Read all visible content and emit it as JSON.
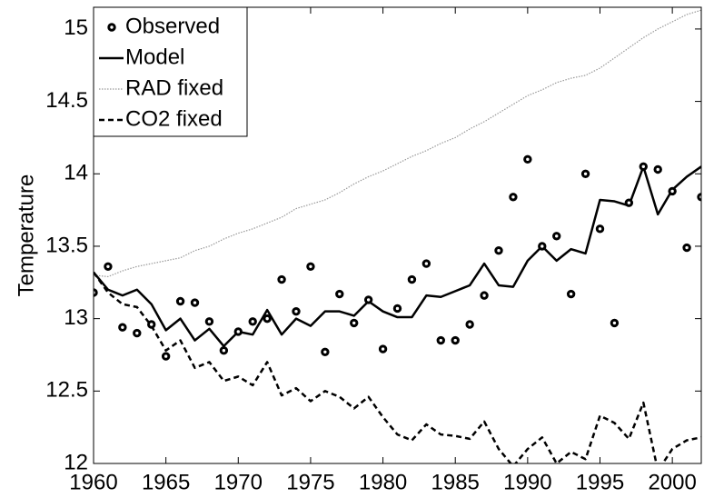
{
  "chart_data": {
    "type": "line",
    "ylabel": "Temperature",
    "x": [
      1960,
      1961,
      1962,
      1963,
      1964,
      1965,
      1966,
      1967,
      1968,
      1969,
      1970,
      1971,
      1972,
      1973,
      1974,
      1975,
      1976,
      1977,
      1978,
      1979,
      1980,
      1981,
      1982,
      1983,
      1984,
      1985,
      1986,
      1987,
      1988,
      1989,
      1990,
      1991,
      1992,
      1993,
      1994,
      1995,
      1996,
      1997,
      1998,
      1999,
      2000,
      2001,
      2002
    ],
    "series": [
      {
        "name": "Observed",
        "color": "#000000",
        "style": "dots",
        "values": [
          13.18,
          13.36,
          12.94,
          12.9,
          12.96,
          12.74,
          13.12,
          13.11,
          12.98,
          12.78,
          12.91,
          12.98,
          13.0,
          13.27,
          13.05,
          13.36,
          12.77,
          13.17,
          12.97,
          13.13,
          12.79,
          13.07,
          13.27,
          13.38,
          12.85,
          12.85,
          12.96,
          13.16,
          13.47,
          13.84,
          14.1,
          13.5,
          13.57,
          13.17,
          14.0,
          13.62,
          12.97,
          13.8,
          14.05,
          14.03,
          13.88,
          13.49,
          13.84
        ]
      },
      {
        "name": "Model",
        "color": "#000000",
        "style": "solid",
        "values": [
          13.32,
          13.2,
          13.16,
          13.2,
          13.1,
          12.92,
          13.0,
          12.85,
          12.93,
          12.81,
          12.91,
          12.89,
          13.06,
          12.89,
          13.0,
          12.95,
          13.05,
          13.05,
          13.02,
          13.12,
          13.05,
          13.01,
          13.01,
          13.16,
          13.15,
          13.19,
          13.23,
          13.38,
          13.23,
          13.22,
          13.4,
          13.5,
          13.4,
          13.48,
          13.45,
          13.82,
          13.81,
          13.78,
          14.05,
          13.72,
          13.89,
          13.98,
          14.05
        ]
      },
      {
        "name": "RAD fixed",
        "color": "#999999",
        "style": "dotted",
        "values": [
          13.3,
          13.29,
          13.33,
          13.36,
          13.38,
          13.4,
          13.42,
          13.47,
          13.5,
          13.55,
          13.59,
          13.62,
          13.66,
          13.7,
          13.76,
          13.79,
          13.82,
          13.87,
          13.93,
          13.98,
          14.02,
          14.07,
          14.12,
          14.16,
          14.21,
          14.25,
          14.31,
          14.36,
          14.42,
          14.48,
          14.54,
          14.58,
          14.63,
          14.66,
          14.68,
          14.73,
          14.8,
          14.87,
          14.94,
          15.0,
          15.05,
          15.1,
          15.13
        ]
      },
      {
        "name": "CO2 fixed",
        "color": "#000000",
        "style": "dashed",
        "values": [
          13.32,
          13.18,
          13.1,
          13.08,
          12.95,
          12.78,
          12.85,
          12.66,
          12.7,
          12.57,
          12.6,
          12.54,
          12.7,
          12.47,
          12.52,
          12.43,
          12.5,
          12.46,
          12.38,
          12.46,
          12.32,
          12.2,
          12.16,
          12.27,
          12.2,
          12.19,
          12.17,
          12.29,
          12.1,
          11.98,
          12.1,
          12.18,
          12.0,
          12.08,
          12.03,
          12.33,
          12.28,
          12.17,
          12.42,
          11.95,
          12.1,
          12.16,
          12.18
        ]
      }
    ],
    "xlim": [
      1960,
      2002
    ],
    "ylim": [
      12,
      15.15
    ],
    "xticks": [
      1960,
      1965,
      1970,
      1975,
      1980,
      1985,
      1990,
      1995,
      2000
    ],
    "yticks": [
      12,
      12.5,
      13,
      13.5,
      14,
      14.5,
      15
    ],
    "legend": "upper-left",
    "grid": false
  }
}
